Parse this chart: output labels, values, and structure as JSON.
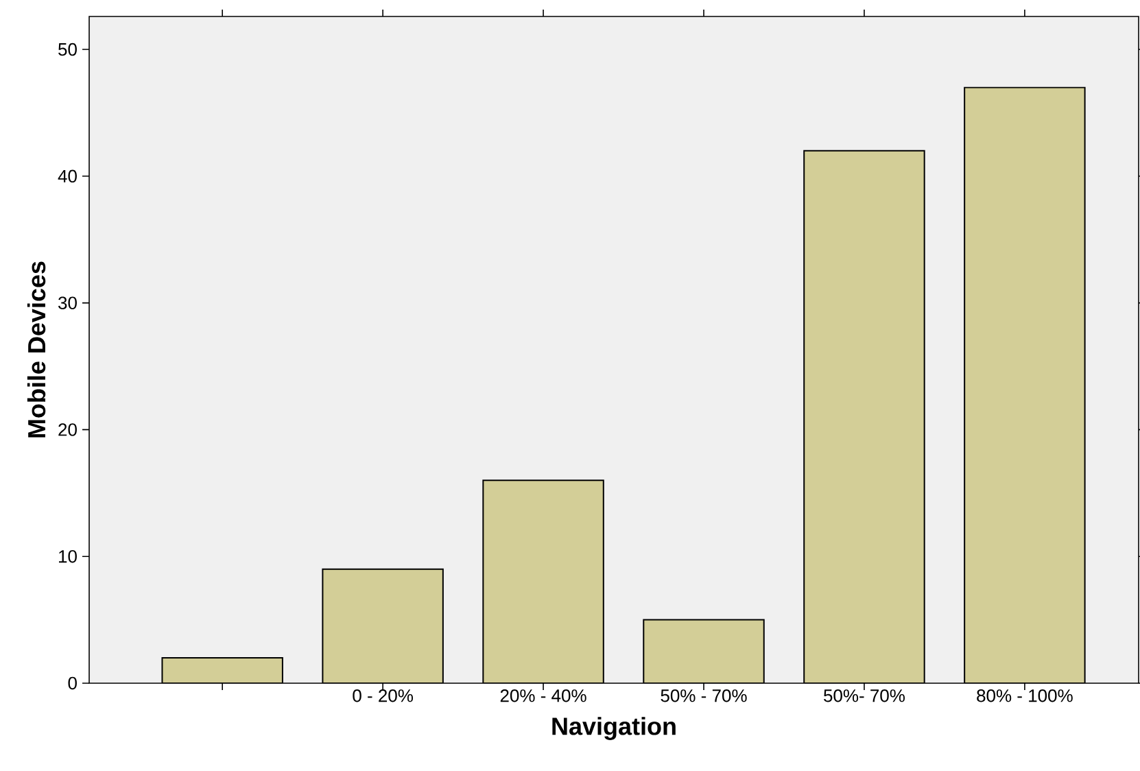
{
  "chart_data": {
    "type": "bar",
    "xlabel": "Navigation",
    "ylabel": "Mobile Devices",
    "categories": [
      null,
      "0 - 20%",
      "20% - 40%",
      "50% - 70%",
      "50%- 70%",
      "80% - 100%"
    ],
    "values": [
      2,
      9,
      16,
      5,
      42,
      47
    ],
    "color": "#d3ce97",
    "ylim": [
      0,
      52.6
    ],
    "yticks": [
      0,
      10,
      20,
      30,
      40,
      50
    ],
    "grid": false
  }
}
